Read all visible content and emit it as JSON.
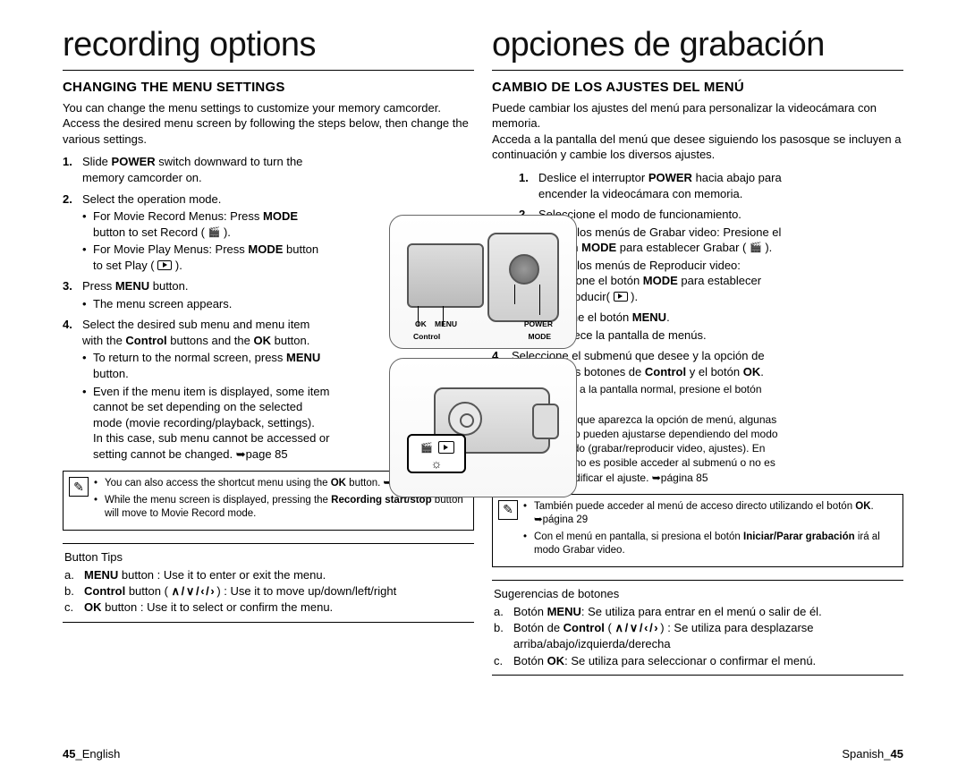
{
  "page_number": "45",
  "left": {
    "lang_label": "English",
    "title": "recording options",
    "subtitle": "CHANGING THE MENU SETTINGS",
    "intro": "You can change the menu settings to customize your memory camcorder. Access the desired menu screen by following the steps below, then change the various settings.",
    "steps": {
      "s1": {
        "n": "1.",
        "t": "Slide <b>POWER</b> switch downward to turn the memory camcorder on."
      },
      "s2": {
        "n": "2.",
        "t": "Select the operation mode.",
        "b1": "For Movie Record Menus: Press <b>MODE</b> button to set Record ( <span class='inline-icon icon-rec' data-name='record-icon' data-interactable='false'></span> ).",
        "b2": "For Movie Play Menus: Press <b>MODE</b> button to set Play ( <span class='icon-play' data-name='play-icon' data-interactable='false'></span> )."
      },
      "s3": {
        "n": "3.",
        "t": "Press <b>MENU</b> button.",
        "b1": "The menu screen appears."
      },
      "s4": {
        "n": "4.",
        "t": "Select the desired sub menu and menu item with the <b>Control</b> buttons and the <b>OK</b> button.",
        "b1": "To return to the normal screen, press <b>MENU</b> button.",
        "b2": "Even if the menu item is displayed, some item cannot be set depending on the selected mode (movie recording/playback, settings).<br>In this case, sub menu cannot be accessed or setting cannot be changed. ➥page 85"
      }
    },
    "tips": {
      "t1": "You can also access the shortcut menu using the <b>OK</b> button. ➥page29",
      "t2": "While the menu screen is displayed, pressing the <b>Recording start/stop</b> button will move to Movie Record mode."
    },
    "btips": {
      "title": "Button Tips",
      "a": "<b>MENU</b> button : Use it to enter or exit the menu.",
      "b": "<b>Control</b> button ( <span class='arrow-icon' data-name='arrow-icons' data-interactable='false'></span> ) : Use it to move up/down/left/right",
      "c": "<b>OK</b> button : Use it to select or confirm the menu."
    }
  },
  "right": {
    "lang_label": "Spanish",
    "title": "opciones de grabación",
    "subtitle": "CAMBIO DE LOS AJUSTES DEL MENÚ",
    "intro": "Puede cambiar los ajustes del menú para personalizar la videocámara con memoria.<br>Acceda a la pantalla del menú que desee siguiendo los pasosque se incluyen a continuación y cambie los diversos ajustes.",
    "steps": {
      "s1": {
        "n": "1.",
        "t": "Deslice el interruptor <b>POWER</b> hacia abajo para encender la videocámara con memoria."
      },
      "s2": {
        "n": "2.",
        "t": "Seleccione el modo de funcionamiento.",
        "b1": "Para los menús de Grabar video: Presione el botón <b>MODE</b> para establecer Grabar ( <span class='inline-icon icon-rec' data-name='record-icon' data-interactable='false'></span> ).",
        "b2": "Para los menús de Reproducir video: Presione el botón <b>MODE</b> para establecer Reproducir( <span class='icon-play' data-name='play-icon' data-interactable='false'></span> )."
      },
      "s3": {
        "n": "3.",
        "t": "Presione el botón <b>MENU</b>.",
        "b1": "Aparece la pantalla de menús."
      },
      "s4": {
        "n": "4.",
        "t": "Seleccione el submenú que desee y la opción de menú con los botones de <b>Control</b> y el botón <b>OK</b>.",
        "b1": "Para volver a la pantalla normal, presione el botón <b>MENU</b>.",
        "b2": "Incluso aunque aparezca la opción de menú, algunas opciones no pueden ajustarse dependiendo del modo seleccionado (grabar/reproducir video, ajustes). En este caso, no es posible acceder al submenú o no es posible modificar el ajuste. ➥página 85"
      }
    },
    "tips": {
      "t1": "También puede acceder al menú de acceso directo utilizando el botón <b>OK</b>. ➥página 29",
      "t2": "Con el menú en pantalla, si presiona el botón <b>Iniciar/Parar grabación</b> irá al modo Grabar video."
    },
    "btips": {
      "title": "Sugerencias de botones",
      "a": "Botón <b>MENU</b>: Se utiliza para entrar en el menú o salir de él.",
      "b": "Botón de <b>Control</b> ( <span class='arrow-icon' data-name='arrow-icons' data-interactable='false'></span> ) : Se utiliza para desplazarse arriba/abajo/izquierda/derecha",
      "c": "Botón <b>OK</b>: Se utiliza para seleccionar o confirmar el menú."
    }
  },
  "fig_labels": {
    "ok": "OK",
    "menu": "MENU",
    "control": "Control",
    "power": "POWER",
    "mode": "MODE"
  }
}
